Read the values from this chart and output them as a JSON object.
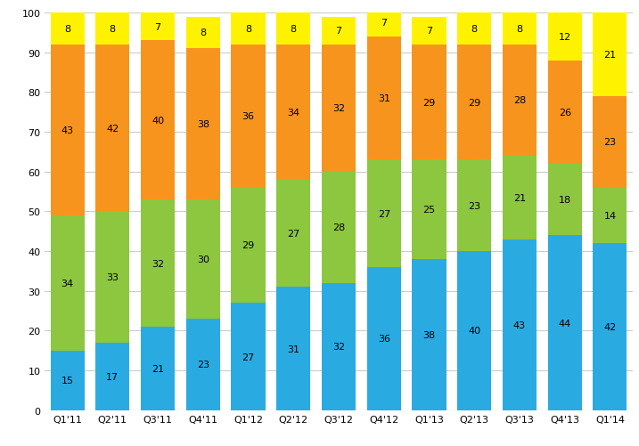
{
  "categories": [
    "Q1'11",
    "Q2'11",
    "Q3'11",
    "Q4'11",
    "Q1'12",
    "Q2'12",
    "Q3'12",
    "Q4'12",
    "Q1'13",
    "Q2'13",
    "Q3'13",
    "Q4'13",
    "Q1'14"
  ],
  "series": {
    "bottom": [
      15,
      17,
      21,
      23,
      27,
      31,
      32,
      36,
      38,
      40,
      43,
      44,
      42
    ],
    "mid_low": [
      34,
      33,
      32,
      30,
      29,
      27,
      28,
      27,
      25,
      23,
      21,
      18,
      14
    ],
    "mid_high": [
      43,
      42,
      40,
      38,
      36,
      34,
      32,
      31,
      29,
      29,
      28,
      26,
      23
    ],
    "top": [
      8,
      8,
      7,
      8,
      8,
      8,
      7,
      7,
      7,
      8,
      8,
      12,
      21
    ]
  },
  "colors": {
    "bottom": "#29ABE2",
    "mid_low": "#8DC63F",
    "mid_high": "#F7941D",
    "top": "#FFF200"
  },
  "ylim": [
    0,
    100
  ],
  "yticks": [
    0,
    10,
    20,
    30,
    40,
    50,
    60,
    70,
    80,
    90,
    100
  ],
  "bar_width": 0.75,
  "background_color": "#ffffff",
  "grid_color": "#cccccc",
  "text_color": "#000000",
  "fontsize_labels": 8,
  "fontsize_ticks": 8
}
